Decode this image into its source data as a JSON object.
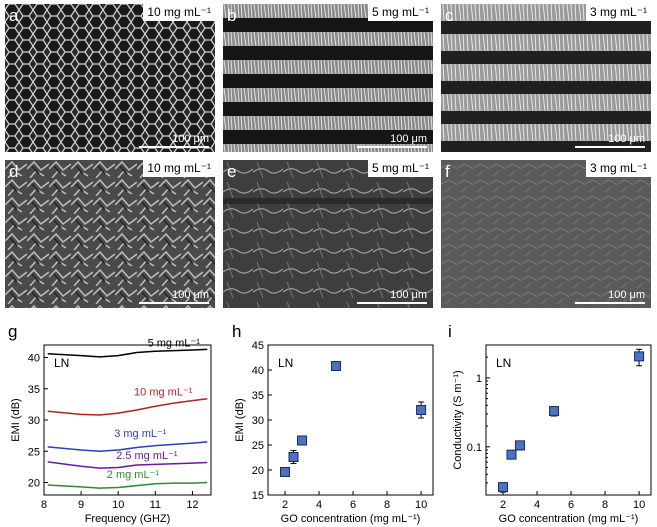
{
  "panels": [
    {
      "letter": "a",
      "conc": "10 mg mL⁻¹",
      "scale": "100 μm"
    },
    {
      "letter": "b",
      "conc": "5 mg mL⁻¹",
      "scale": "100 μm"
    },
    {
      "letter": "c",
      "conc": "3 mg mL⁻¹",
      "scale": "100 μm"
    },
    {
      "letter": "d",
      "conc": "10 mg mL⁻¹",
      "scale": "100 μm"
    },
    {
      "letter": "e",
      "conc": "5 mg mL⁻¹",
      "scale": "100 μm"
    },
    {
      "letter": "f",
      "conc": "3 mg mL⁻¹",
      "scale": "100 μm"
    }
  ],
  "chart_data": [
    {
      "letter": "g",
      "type": "line",
      "annotation": "LN",
      "xlabel": "Frequency (GHZ)",
      "ylabel": "EMI (dB)",
      "xlim": [
        8,
        12.5
      ],
      "ylim": [
        18,
        42
      ],
      "xticks": [
        8,
        9,
        10,
        11,
        12
      ],
      "yticks": [
        20,
        25,
        30,
        35,
        40
      ],
      "series": [
        {
          "name": "5 mg mL⁻¹",
          "color": "#000000",
          "x": [
            8.1,
            9.0,
            9.5,
            10.0,
            10.5,
            11.0,
            11.5,
            12.0,
            12.4
          ],
          "y": [
            40.6,
            40.3,
            40.1,
            40.3,
            40.8,
            41.0,
            41.1,
            41.2,
            41.3
          ]
        },
        {
          "name": "10 mg mL⁻¹",
          "color": "#b22222",
          "x": [
            8.1,
            9.0,
            9.5,
            10.0,
            10.5,
            11.0,
            11.5,
            12.0,
            12.4
          ],
          "y": [
            31.4,
            30.9,
            30.8,
            31.1,
            31.6,
            32.2,
            32.7,
            33.1,
            33.4
          ]
        },
        {
          "name": "3 mg mL⁻¹",
          "color": "#2a3fbf",
          "x": [
            8.1,
            9.0,
            9.5,
            10.0,
            10.5,
            11.0,
            11.5,
            12.0,
            12.4
          ],
          "y": [
            25.7,
            25.2,
            25.0,
            25.2,
            25.6,
            25.9,
            26.1,
            26.3,
            26.5
          ]
        },
        {
          "name": "2.5 mg mL⁻¹",
          "color": "#6a1b9a",
          "x": [
            8.1,
            9.0,
            9.5,
            10.0,
            10.5,
            11.0,
            11.5,
            12.0,
            12.4
          ],
          "y": [
            23.3,
            22.6,
            22.3,
            22.4,
            22.8,
            22.9,
            23.0,
            23.1,
            23.2
          ]
        },
        {
          "name": "2 mg mL⁻¹",
          "color": "#2e8b2e",
          "x": [
            8.1,
            9.0,
            9.5,
            10.0,
            10.5,
            11.0,
            11.5,
            12.0,
            12.4
          ],
          "y": [
            19.6,
            19.3,
            19.1,
            19.2,
            19.5,
            19.8,
            19.9,
            19.9,
            20.0
          ]
        }
      ]
    },
    {
      "letter": "h",
      "type": "scatter",
      "annotation": "LN",
      "xlabel": "GO concentration (mg mL⁻¹)",
      "ylabel": "EMI (dB)",
      "xlim": [
        1,
        10.7
      ],
      "ylim": [
        15,
        45
      ],
      "xticks": [
        2,
        4,
        6,
        8,
        10
      ],
      "yticks": [
        15,
        20,
        25,
        30,
        35,
        40,
        45
      ],
      "x": [
        2,
        2.5,
        3,
        5,
        10
      ],
      "y": [
        19.6,
        22.6,
        25.9,
        40.8,
        32.0
      ],
      "err": [
        0.4,
        1.3,
        0.5,
        0.3,
        1.6
      ]
    },
    {
      "letter": "i",
      "type": "scatter",
      "annotation": "LN",
      "xlabel": "GO concentration (mg mL⁻¹)",
      "ylabel": "Conductivity (S m⁻¹)",
      "log_y": true,
      "xlim": [
        1,
        10.7
      ],
      "ylim": [
        0.02,
        3
      ],
      "xticks": [
        2,
        4,
        6,
        8,
        10
      ],
      "yticks": [
        0.1,
        1
      ],
      "ytick_labels": [
        "0.1",
        "1"
      ],
      "x": [
        2,
        2.5,
        3,
        5,
        10
      ],
      "y": [
        0.026,
        0.077,
        0.105,
        0.33,
        2.05
      ],
      "err": [
        0.004,
        0.01,
        0.015,
        0.05,
        0.55
      ]
    }
  ]
}
